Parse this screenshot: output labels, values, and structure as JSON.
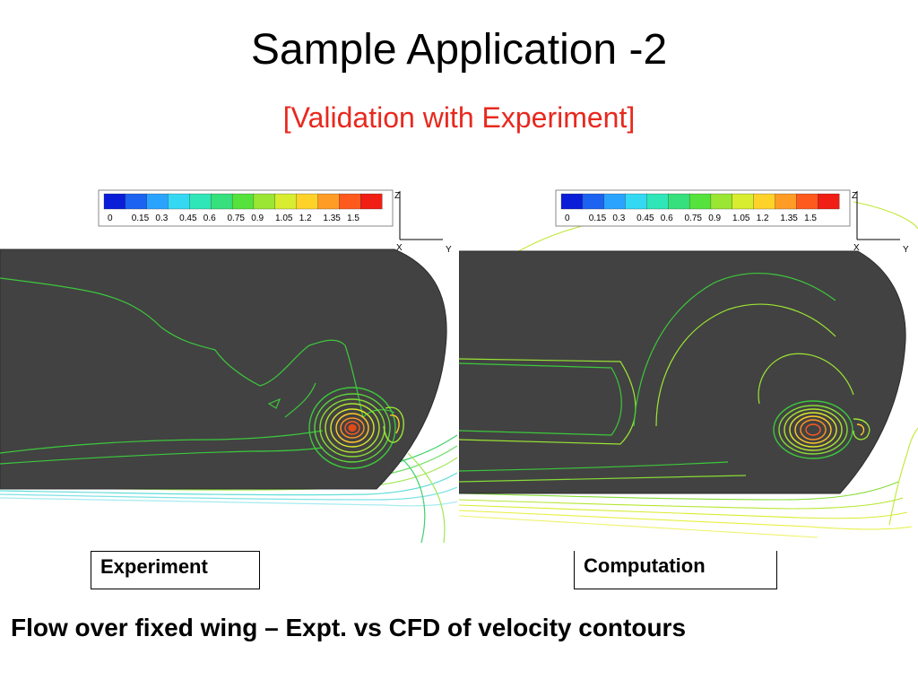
{
  "slide": {
    "title": "Sample Application -2",
    "subtitle": "[Validation with Experiment]",
    "caption": "Flow over fixed wing – Expt. vs CFD of velocity contours"
  },
  "panels": [
    {
      "id": "experiment",
      "label": "Experiment"
    },
    {
      "id": "computation",
      "label": "Computation"
    }
  ],
  "legend": {
    "tick_labels": [
      "0",
      "0.15",
      "0.3",
      "0.45",
      "0.6",
      "0.75",
      "0.9",
      "1.05",
      "1.2",
      "1.35",
      "1.5"
    ],
    "colors": [
      "#0a1ed8",
      "#1b63f0",
      "#2aa3ff",
      "#35d8f2",
      "#2ee6b8",
      "#36e07c",
      "#55e23c",
      "#9ae632",
      "#d8ec30",
      "#ffd22a",
      "#ff9c26",
      "#ff5a1e",
      "#f01e14"
    ]
  },
  "axes": {
    "x_letter": "X",
    "y_letter": "Y",
    "z_letter": "Z"
  },
  "colors": {
    "wing": "#424242",
    "wing_edge": "#2c2c2c",
    "contour_green": "#3cc83c",
    "contour_yellowgreen": "#bfe832",
    "contour_cyan": "#6fe8e0",
    "vortex_core": "#e04a18",
    "subtitle": "#e8281e"
  }
}
